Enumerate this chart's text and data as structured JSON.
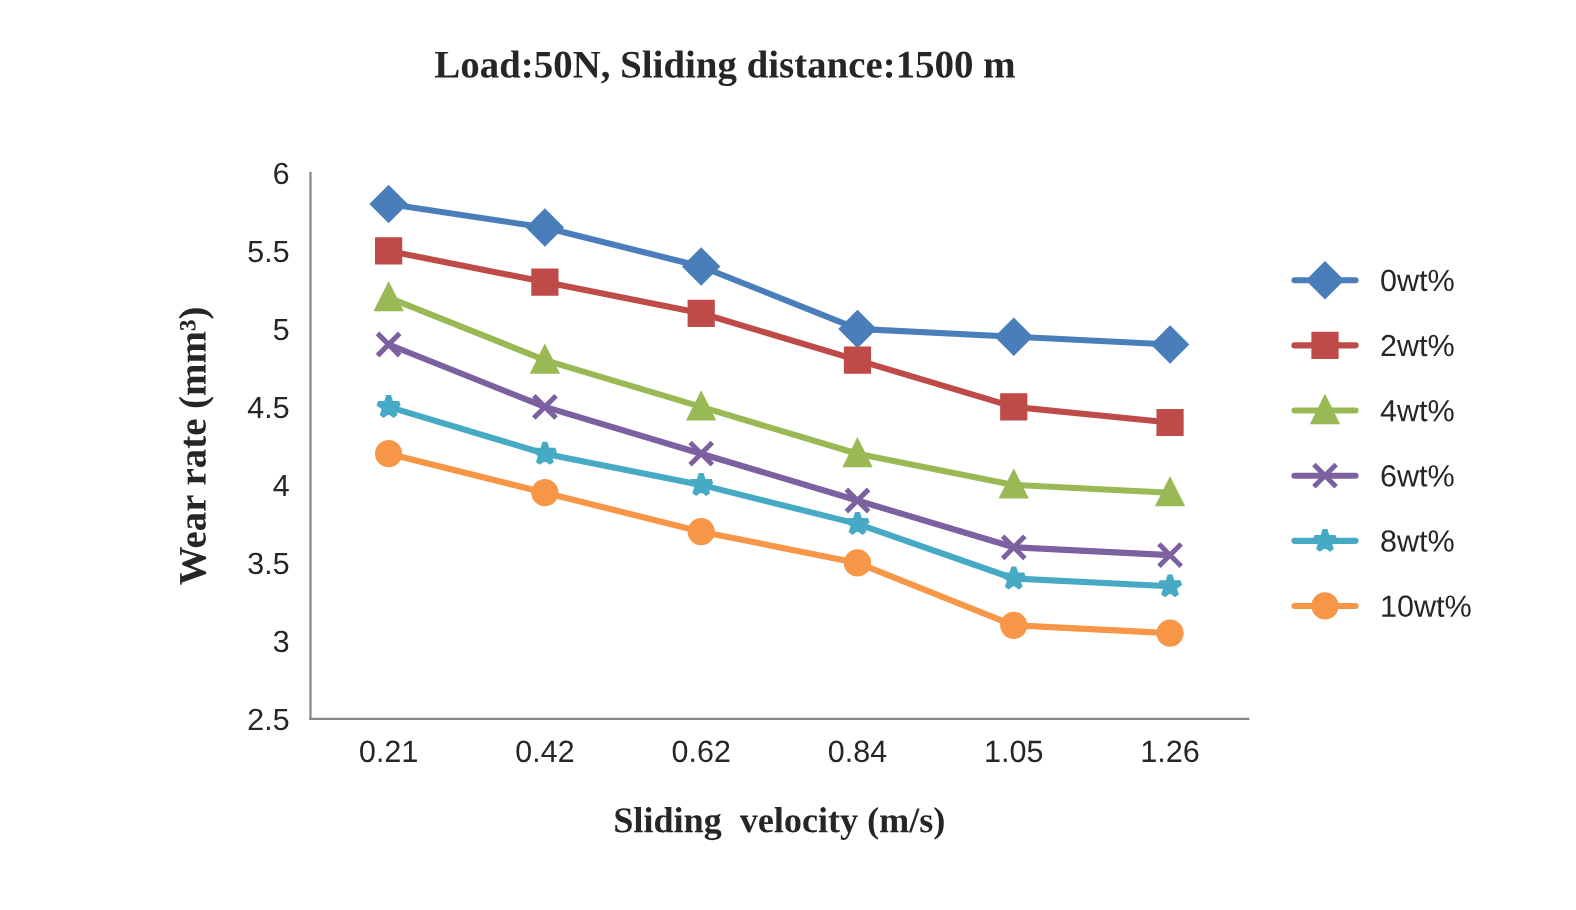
{
  "chart_data": {
    "type": "line",
    "title": "Load:50N, Sliding distance:1500 m",
    "xlabel": "Sliding  velocity (m/s)",
    "ylabel": "Wear rate (mm³)",
    "categories": [
      "0.21",
      "0.42",
      "0.62",
      "0.84",
      "1.05",
      "1.26"
    ],
    "series": [
      {
        "name": "0wt%",
        "color": "#4a7ebb",
        "marker": "diamond",
        "values": [
          5.8,
          5.65,
          5.4,
          5.0,
          4.95,
          4.9
        ]
      },
      {
        "name": "2wt%",
        "color": "#be4b48",
        "marker": "square",
        "values": [
          5.5,
          5.3,
          5.1,
          4.8,
          4.5,
          4.4
        ]
      },
      {
        "name": "4wt%",
        "color": "#98b954",
        "marker": "triangle",
        "values": [
          5.2,
          4.8,
          4.5,
          4.2,
          4.0,
          3.95
        ]
      },
      {
        "name": "6wt%",
        "color": "#7d60a0",
        "marker": "cross",
        "values": [
          4.9,
          4.5,
          4.2,
          3.9,
          3.6,
          3.55
        ]
      },
      {
        "name": "8wt%",
        "color": "#46aac5",
        "marker": "star",
        "values": [
          4.5,
          4.2,
          4.0,
          3.75,
          3.4,
          3.35
        ]
      },
      {
        "name": "10wt%",
        "color": "#f79646",
        "marker": "circle",
        "values": [
          4.2,
          3.95,
          3.7,
          3.5,
          3.1,
          3.05
        ]
      }
    ],
    "ylim": [
      2.5,
      6
    ],
    "yticks": [
      2.5,
      3,
      3.5,
      4,
      4.5,
      5,
      5.5,
      6
    ],
    "grid": false,
    "legend": "right",
    "line_style": "solid"
  }
}
